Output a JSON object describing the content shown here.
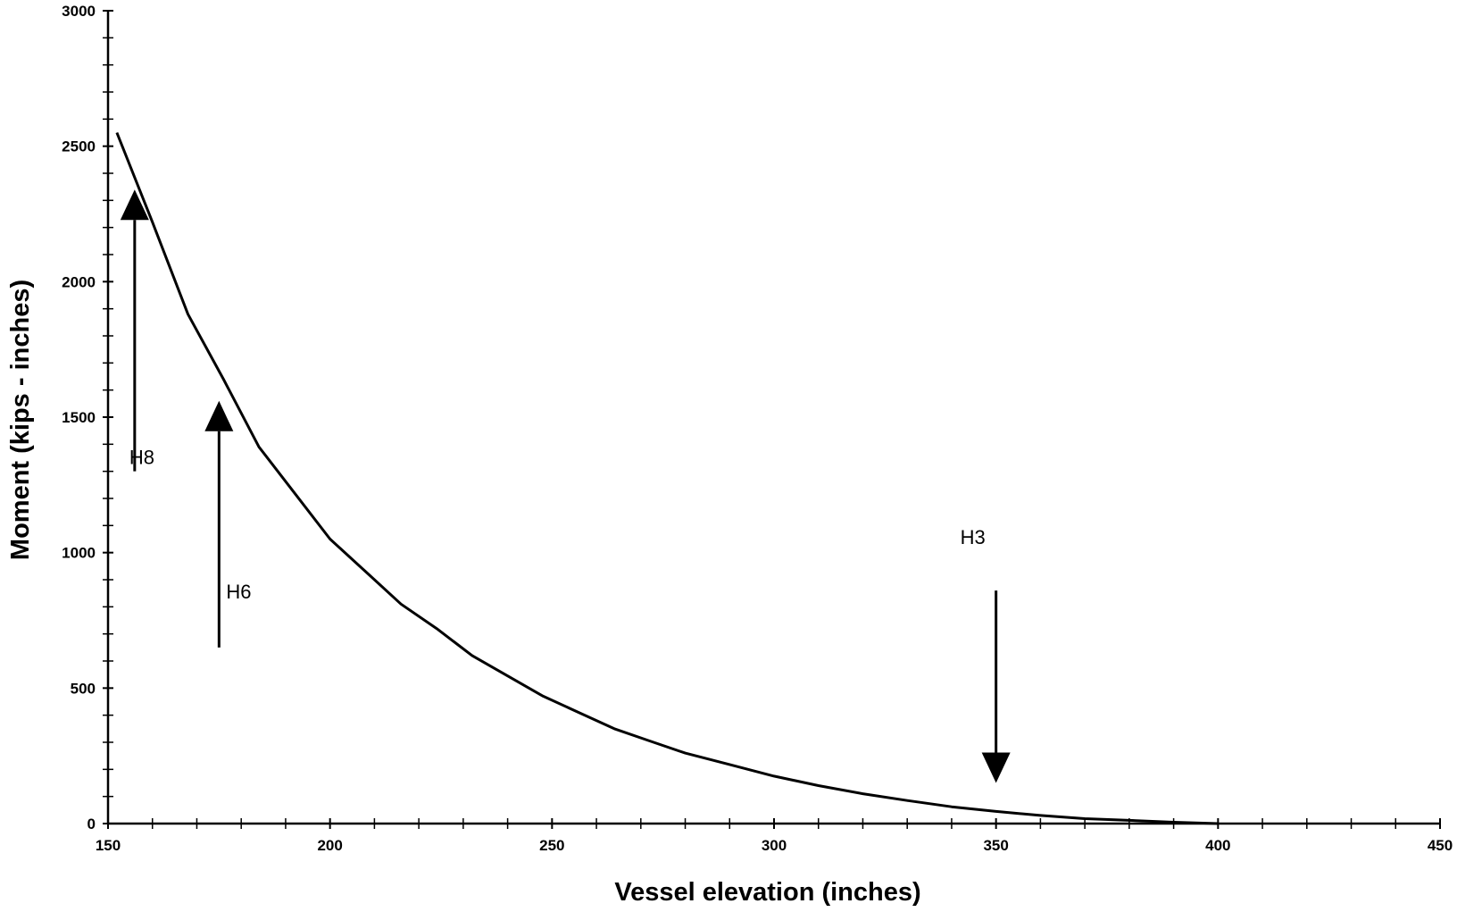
{
  "chart_data": {
    "type": "line",
    "title": "",
    "xlabel": "Vessel elevation (inches)",
    "ylabel": "Moment (kips - inches)",
    "xlim": [
      150,
      450
    ],
    "ylim": [
      0,
      3000
    ],
    "x_ticks": [
      150,
      200,
      250,
      300,
      350,
      400,
      450
    ],
    "y_ticks": [
      0,
      500,
      1000,
      1500,
      2000,
      2500,
      3000
    ],
    "grid": false,
    "legend": "none",
    "series": [
      {
        "x": [
          152,
          160,
          168,
          176,
          184,
          192,
          200,
          208,
          216,
          224,
          232,
          240,
          248,
          256,
          264,
          272,
          280,
          290,
          300,
          310,
          320,
          330,
          340,
          350,
          360,
          370,
          380,
          390,
          400
        ],
        "y": [
          2550,
          2220,
          1880,
          1640,
          1390,
          1220,
          1050,
          930,
          810,
          720,
          620,
          545,
          470,
          410,
          350,
          305,
          260,
          218,
          175,
          140,
          110,
          85,
          62,
          45,
          30,
          18,
          12,
          5,
          0
        ]
      }
    ],
    "annotations": [
      {
        "label": "H8",
        "direction": "up",
        "x": 156,
        "y_tail": 1300,
        "y_head": 2340
      },
      {
        "label": "H6",
        "direction": "up",
        "x": 175,
        "y_tail": 650,
        "y_head": 1560
      },
      {
        "label": "H3",
        "direction": "down",
        "x": 350,
        "y_tail": 860,
        "y_head": 150
      }
    ]
  }
}
